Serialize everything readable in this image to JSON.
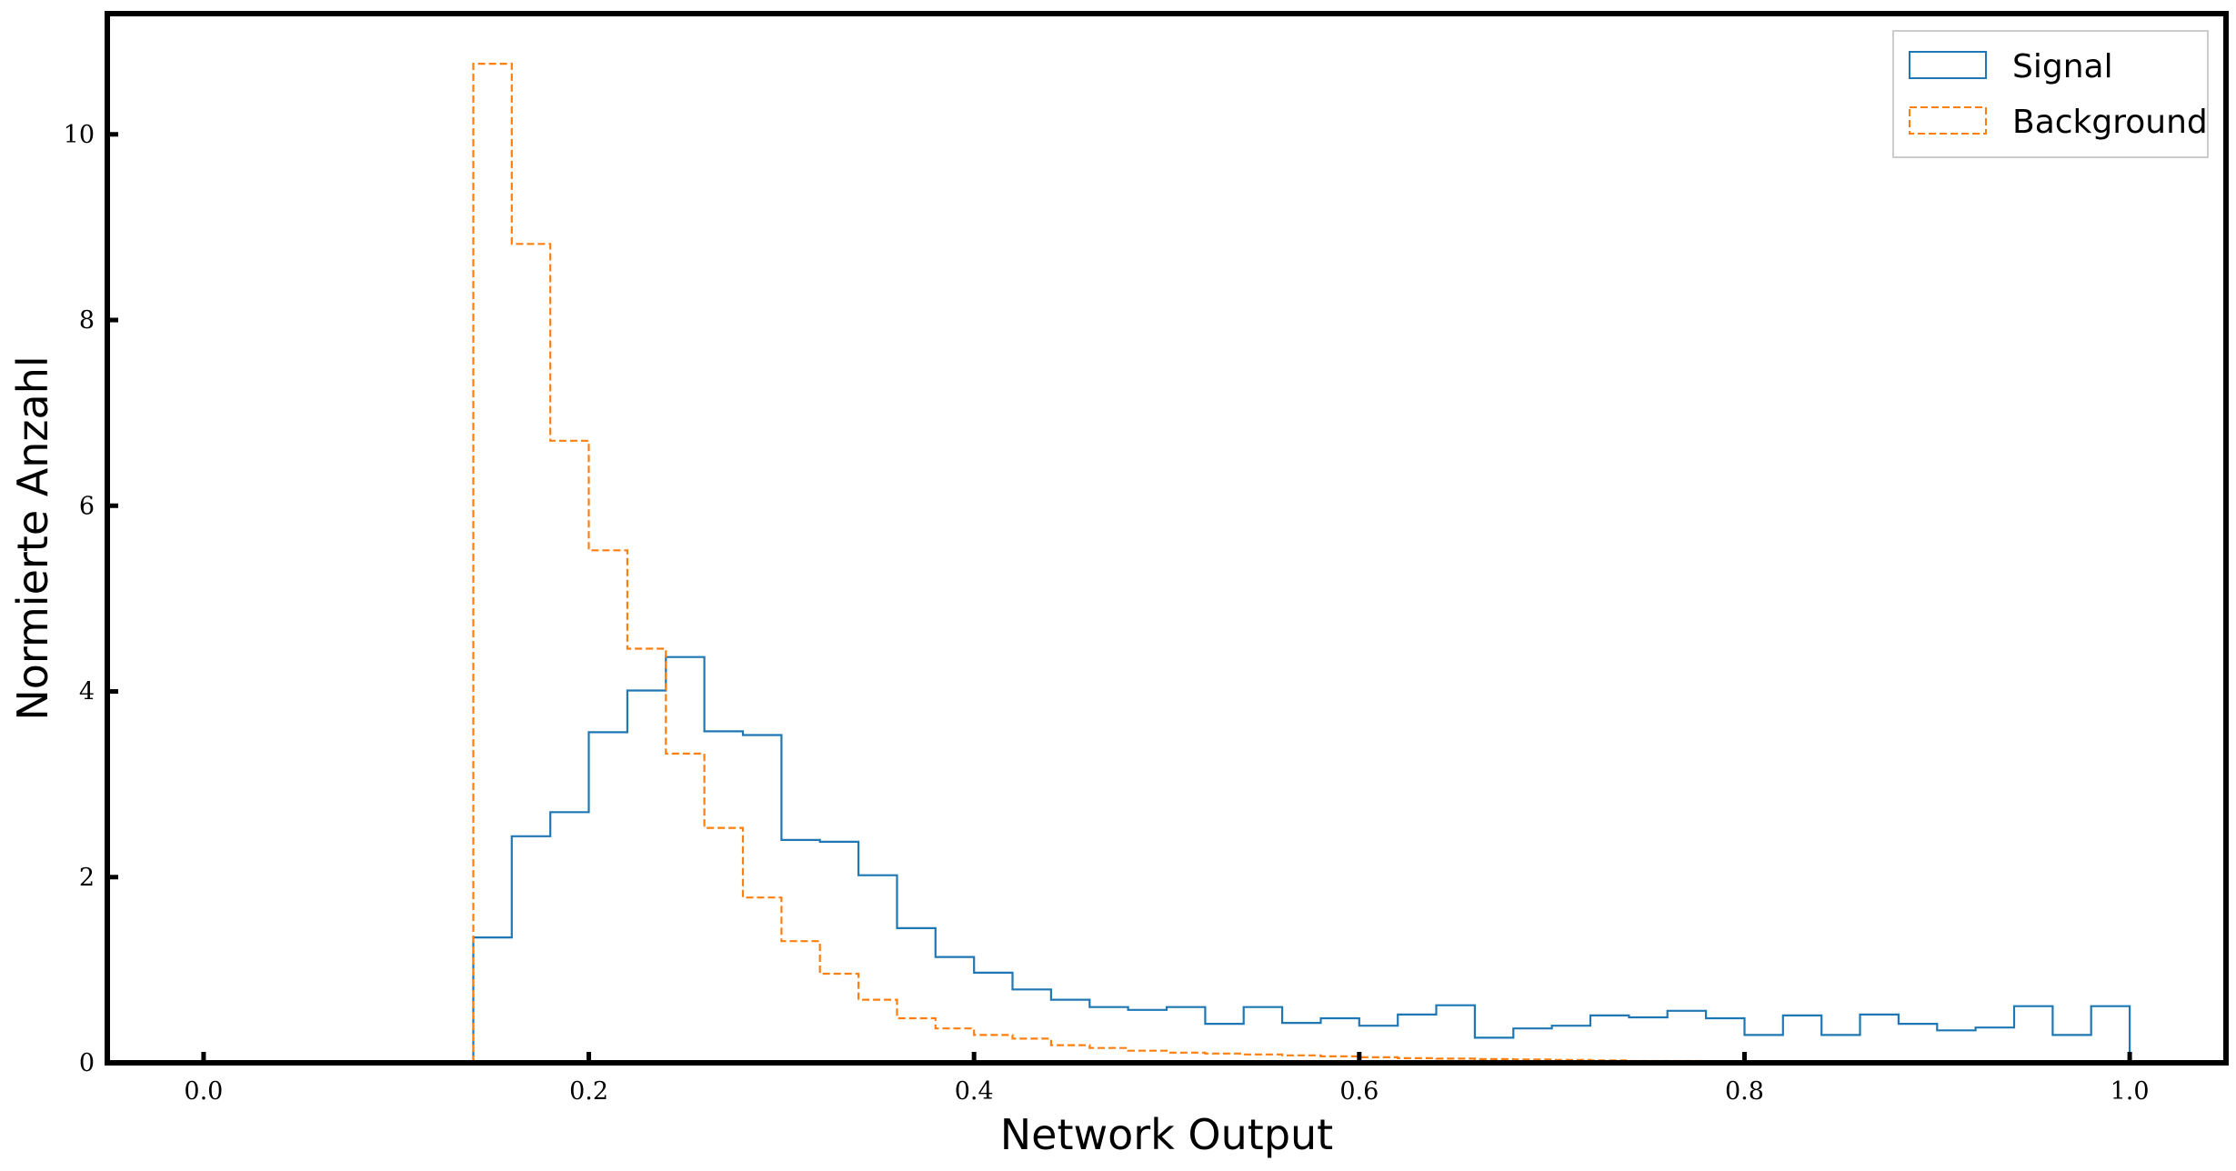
{
  "chart_data": {
    "type": "histogram",
    "xlabel": "Network Output",
    "ylabel": "Normierte Anzahl",
    "xlim": [
      -0.05,
      1.05
    ],
    "ylim": [
      0,
      11.3
    ],
    "xticks": [
      "0.0",
      "0.2",
      "0.4",
      "0.6",
      "0.8",
      "1.0"
    ],
    "xtick_values": [
      0.0,
      0.2,
      0.4,
      0.6,
      0.8,
      1.0
    ],
    "yticks": [
      "0",
      "2",
      "4",
      "6",
      "8",
      "10"
    ],
    "ytick_values": [
      0,
      2,
      4,
      6,
      8,
      10
    ],
    "grid": false,
    "legend_position": "top-right",
    "bin_edges": [
      0.14,
      0.16,
      0.18,
      0.2,
      0.22,
      0.24,
      0.26,
      0.28,
      0.3,
      0.32,
      0.34,
      0.36,
      0.38,
      0.4,
      0.42,
      0.44,
      0.46,
      0.48,
      0.5,
      0.52,
      0.54,
      0.56,
      0.58,
      0.6,
      0.62,
      0.64,
      0.66,
      0.68,
      0.7,
      0.72,
      0.74,
      0.76,
      0.78,
      0.8,
      0.82,
      0.84,
      0.86,
      0.88,
      0.9,
      0.92,
      0.94,
      0.96,
      0.98,
      1.0
    ],
    "series": [
      {
        "name": "Signal",
        "color": "#1f77b4",
        "linestyle": "solid",
        "values": [
          1.35,
          2.44,
          2.7,
          3.56,
          4.01,
          4.37,
          3.57,
          3.53,
          2.4,
          2.38,
          2.02,
          1.45,
          1.14,
          0.97,
          0.79,
          0.68,
          0.6,
          0.57,
          0.6,
          0.42,
          0.6,
          0.43,
          0.48,
          0.4,
          0.52,
          0.62,
          0.27,
          0.37,
          0.4,
          0.51,
          0.49,
          0.56,
          0.48,
          0.3,
          0.51,
          0.3,
          0.52,
          0.42,
          0.35,
          0.38,
          0.61,
          0.3,
          0.61
        ]
      },
      {
        "name": "Background",
        "color": "#ff7f0e",
        "linestyle": "dashed",
        "values": [
          10.76,
          8.82,
          6.7,
          5.52,
          4.46,
          3.33,
          2.53,
          1.78,
          1.31,
          0.96,
          0.68,
          0.48,
          0.37,
          0.3,
          0.26,
          0.19,
          0.16,
          0.13,
          0.11,
          0.1,
          0.09,
          0.08,
          0.07,
          0.06,
          0.05,
          0.045,
          0.04,
          0.035,
          0.03,
          0.025,
          0.02,
          0.02,
          0.015,
          0.012,
          0.01,
          0,
          0,
          0,
          0,
          0,
          0,
          0,
          0
        ]
      }
    ]
  }
}
